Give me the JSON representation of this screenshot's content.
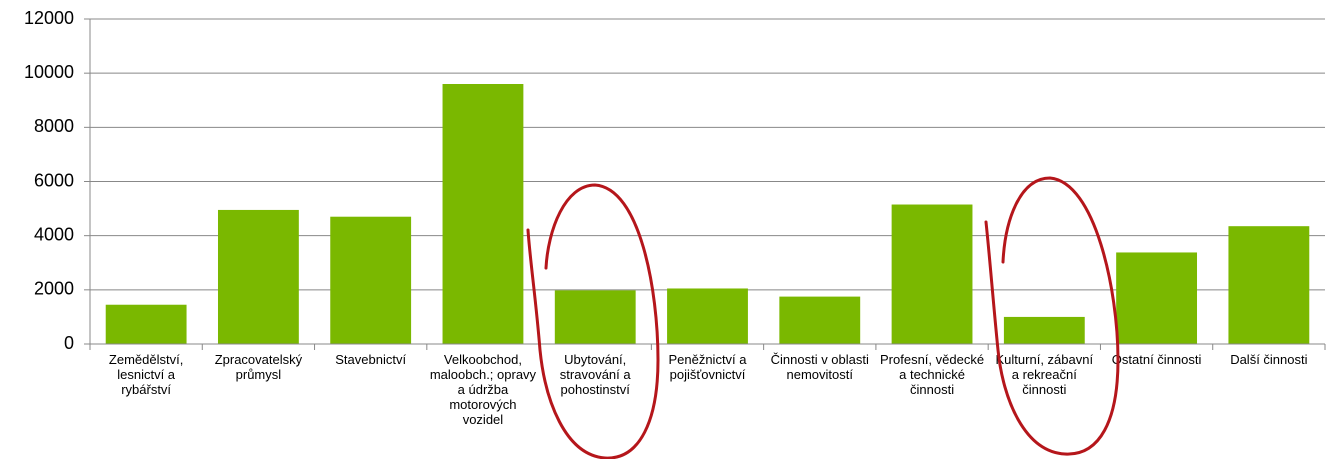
{
  "chart_data": {
    "type": "bar",
    "categories": [
      "Zemědělství, lesnictví a rybářství",
      "Zpracovatelský průmysl",
      "Stavebnictví",
      "Velkoobchod, maloobch.; opravy a údržba motorových vozidel",
      "Ubytování, stravování a pohostinství",
      "Peněžnictví a pojišťovnictví",
      "Činnosti v oblasti nemovitostí",
      "Profesní, vědecké a technické činnosti",
      "Kulturní, zábavní a rekreační činnosti",
      "Ostatní činnosti",
      "Další činnosti"
    ],
    "values": [
      1450,
      4950,
      4700,
      9600,
      1980,
      2050,
      1750,
      5150,
      1000,
      3380,
      4350
    ],
    "color": "#7ab800",
    "ylim": [
      0,
      12000
    ],
    "yticks": [
      0,
      2000,
      4000,
      6000,
      8000,
      10000,
      12000
    ],
    "grid": true
  }
}
